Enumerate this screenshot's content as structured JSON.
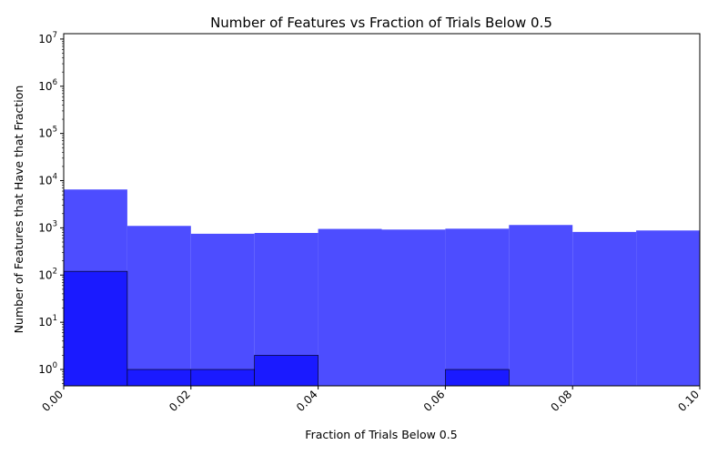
{
  "chart_data": {
    "type": "bar",
    "title": "Number of Features vs Fraction of Trials Below 0.5",
    "xlabel": "Fraction of Trials Below 0.5",
    "ylabel": "Number of Features that Have that Fraction",
    "xlim": [
      0.0,
      0.1
    ],
    "ylim": [
      0.45,
      13000000
    ],
    "yscale": "log",
    "grid": false,
    "x_ticks": [
      "0.00",
      "0.02",
      "0.04",
      "0.06",
      "0.08",
      "0.10"
    ],
    "x_tick_values": [
      0.0,
      0.02,
      0.04,
      0.06,
      0.08,
      0.1
    ],
    "y_ticks": [
      {
        "base": "10",
        "exp": "0",
        "value": 1
      },
      {
        "base": "10",
        "exp": "1",
        "value": 10
      },
      {
        "base": "10",
        "exp": "2",
        "value": 100
      },
      {
        "base": "10",
        "exp": "3",
        "value": 1000
      },
      {
        "base": "10",
        "exp": "4",
        "value": 10000
      },
      {
        "base": "10",
        "exp": "5",
        "value": 100000
      },
      {
        "base": "10",
        "exp": "6",
        "value": 1000000
      },
      {
        "base": "10",
        "exp": "7",
        "value": 10000000
      }
    ],
    "bin_edges": [
      0.0,
      0.01,
      0.02,
      0.03,
      0.04,
      0.05,
      0.06,
      0.07,
      0.08,
      0.09,
      0.1
    ],
    "series": [
      {
        "color": "#4d4dff",
        "values": [
          6500,
          1100,
          750,
          780,
          950,
          920,
          960,
          1150,
          820,
          880
        ]
      },
      {
        "color": "#1a1aff",
        "edge": "#000000",
        "values": [
          120,
          1,
          1,
          2,
          0,
          0,
          1,
          0,
          0,
          0
        ]
      }
    ]
  }
}
